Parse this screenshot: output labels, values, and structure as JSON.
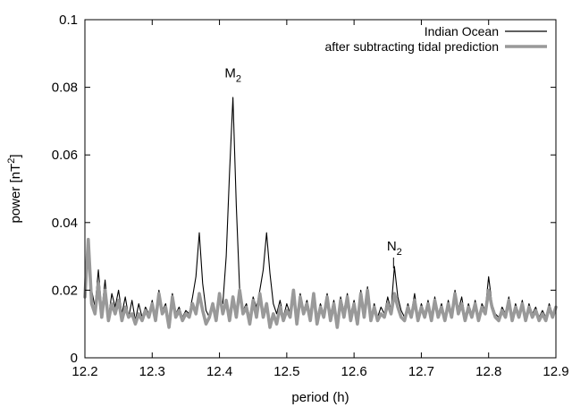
{
  "chart_data": {
    "type": "line",
    "xlabel": "period (h)",
    "ylabel_main": "power [nT",
    "ylabel_sup": "2",
    "ylabel_close": "]",
    "xlim": [
      12.2,
      12.9
    ],
    "ylim": [
      0,
      0.1
    ],
    "x_ticks": [
      12.2,
      12.3,
      12.4,
      12.5,
      12.6,
      12.7,
      12.8,
      12.9
    ],
    "x_tick_labels": [
      "12.2",
      "12.3",
      "12.4",
      "12.5",
      "12.6",
      "12.7",
      "12.8",
      "12.9"
    ],
    "y_ticks": [
      0,
      0.02,
      0.04,
      0.06,
      0.08,
      0.1
    ],
    "y_tick_labels": [
      "0",
      "0.02",
      "0.04",
      "0.06",
      "0.08",
      "0.1"
    ],
    "grid": false,
    "legend_position": "top-right",
    "annotations": [
      {
        "label": "M",
        "sub": "2",
        "x": 12.42,
        "y": 0.083
      },
      {
        "label": "N",
        "sub": "2",
        "x": 12.66,
        "y": 0.036
      }
    ],
    "series": [
      {
        "name": "Indian Ocean",
        "color": "#000000",
        "x": [
          12.2,
          12.205,
          12.21,
          12.215,
          12.22,
          12.225,
          12.23,
          12.235,
          12.24,
          12.245,
          12.25,
          12.255,
          12.26,
          12.265,
          12.27,
          12.275,
          12.28,
          12.285,
          12.29,
          12.295,
          12.3,
          12.305,
          12.31,
          12.315,
          12.32,
          12.325,
          12.33,
          12.335,
          12.34,
          12.345,
          12.35,
          12.355,
          12.36,
          12.365,
          12.37,
          12.375,
          12.38,
          12.385,
          12.39,
          12.395,
          12.4,
          12.405,
          12.41,
          12.415,
          12.42,
          12.425,
          12.43,
          12.435,
          12.44,
          12.445,
          12.45,
          12.455,
          12.46,
          12.465,
          12.47,
          12.475,
          12.48,
          12.485,
          12.49,
          12.495,
          12.5,
          12.505,
          12.51,
          12.515,
          12.52,
          12.525,
          12.53,
          12.535,
          12.54,
          12.545,
          12.55,
          12.555,
          12.56,
          12.565,
          12.57,
          12.575,
          12.58,
          12.585,
          12.59,
          12.595,
          12.6,
          12.605,
          12.61,
          12.615,
          12.62,
          12.625,
          12.63,
          12.635,
          12.64,
          12.645,
          12.65,
          12.655,
          12.66,
          12.665,
          12.67,
          12.675,
          12.68,
          12.685,
          12.69,
          12.695,
          12.7,
          12.705,
          12.71,
          12.715,
          12.72,
          12.725,
          12.73,
          12.735,
          12.74,
          12.745,
          12.75,
          12.755,
          12.76,
          12.765,
          12.77,
          12.775,
          12.78,
          12.785,
          12.79,
          12.795,
          12.8,
          12.805,
          12.81,
          12.815,
          12.82,
          12.825,
          12.83,
          12.835,
          12.84,
          12.845,
          12.85,
          12.855,
          12.86,
          12.865,
          12.87,
          12.875,
          12.88,
          12.885,
          12.89,
          12.895,
          12.9
        ],
        "y": [
          0.022,
          0.034,
          0.02,
          0.015,
          0.026,
          0.014,
          0.023,
          0.012,
          0.019,
          0.015,
          0.02,
          0.013,
          0.018,
          0.012,
          0.017,
          0.011,
          0.016,
          0.012,
          0.015,
          0.013,
          0.017,
          0.012,
          0.02,
          0.014,
          0.016,
          0.011,
          0.019,
          0.013,
          0.015,
          0.012,
          0.014,
          0.013,
          0.018,
          0.024,
          0.037,
          0.022,
          0.014,
          0.012,
          0.016,
          0.013,
          0.018,
          0.016,
          0.03,
          0.055,
          0.077,
          0.045,
          0.02,
          0.014,
          0.016,
          0.012,
          0.018,
          0.015,
          0.02,
          0.026,
          0.037,
          0.025,
          0.016,
          0.013,
          0.017,
          0.012,
          0.016,
          0.013,
          0.018,
          0.012,
          0.019,
          0.014,
          0.017,
          0.013,
          0.018,
          0.012,
          0.016,
          0.013,
          0.019,
          0.013,
          0.017,
          0.011,
          0.018,
          0.014,
          0.019,
          0.013,
          0.017,
          0.012,
          0.02,
          0.014,
          0.021,
          0.012,
          0.016,
          0.012,
          0.015,
          0.013,
          0.018,
          0.014,
          0.027,
          0.018,
          0.014,
          0.012,
          0.016,
          0.013,
          0.019,
          0.012,
          0.016,
          0.013,
          0.017,
          0.012,
          0.018,
          0.013,
          0.016,
          0.012,
          0.017,
          0.013,
          0.02,
          0.014,
          0.018,
          0.012,
          0.016,
          0.013,
          0.017,
          0.012,
          0.016,
          0.014,
          0.024,
          0.016,
          0.013,
          0.012,
          0.015,
          0.013,
          0.018,
          0.012,
          0.016,
          0.013,
          0.017,
          0.012,
          0.016,
          0.013,
          0.015,
          0.012,
          0.014,
          0.012,
          0.016,
          0.013,
          0.015
        ]
      },
      {
        "name": "after subtracting tidal prediction",
        "color": "#999999",
        "x": [
          12.2,
          12.205,
          12.21,
          12.215,
          12.22,
          12.225,
          12.23,
          12.235,
          12.24,
          12.245,
          12.25,
          12.255,
          12.26,
          12.265,
          12.27,
          12.275,
          12.28,
          12.285,
          12.29,
          12.295,
          12.3,
          12.305,
          12.31,
          12.315,
          12.32,
          12.325,
          12.33,
          12.335,
          12.34,
          12.345,
          12.35,
          12.355,
          12.36,
          12.365,
          12.37,
          12.375,
          12.38,
          12.385,
          12.39,
          12.395,
          12.4,
          12.405,
          12.41,
          12.415,
          12.42,
          12.425,
          12.43,
          12.435,
          12.44,
          12.445,
          12.45,
          12.455,
          12.46,
          12.465,
          12.47,
          12.475,
          12.48,
          12.485,
          12.49,
          12.495,
          12.5,
          12.505,
          12.51,
          12.515,
          12.52,
          12.525,
          12.53,
          12.535,
          12.54,
          12.545,
          12.55,
          12.555,
          12.56,
          12.565,
          12.57,
          12.575,
          12.58,
          12.585,
          12.59,
          12.595,
          12.6,
          12.605,
          12.61,
          12.615,
          12.62,
          12.625,
          12.63,
          12.635,
          12.64,
          12.645,
          12.65,
          12.655,
          12.66,
          12.665,
          12.67,
          12.675,
          12.68,
          12.685,
          12.69,
          12.695,
          12.7,
          12.705,
          12.71,
          12.715,
          12.72,
          12.725,
          12.73,
          12.735,
          12.74,
          12.745,
          12.75,
          12.755,
          12.76,
          12.765,
          12.77,
          12.775,
          12.78,
          12.785,
          12.79,
          12.795,
          12.8,
          12.805,
          12.81,
          12.815,
          12.82,
          12.825,
          12.83,
          12.835,
          12.84,
          12.845,
          12.85,
          12.855,
          12.86,
          12.865,
          12.87,
          12.875,
          12.88,
          12.885,
          12.89,
          12.895,
          12.9
        ],
        "y": [
          0.018,
          0.035,
          0.016,
          0.013,
          0.022,
          0.012,
          0.02,
          0.011,
          0.016,
          0.013,
          0.017,
          0.011,
          0.015,
          0.012,
          0.013,
          0.01,
          0.013,
          0.011,
          0.014,
          0.012,
          0.016,
          0.011,
          0.019,
          0.013,
          0.015,
          0.009,
          0.018,
          0.012,
          0.014,
          0.011,
          0.013,
          0.012,
          0.016,
          0.013,
          0.019,
          0.014,
          0.01,
          0.012,
          0.016,
          0.011,
          0.019,
          0.013,
          0.017,
          0.011,
          0.018,
          0.012,
          0.02,
          0.013,
          0.015,
          0.01,
          0.017,
          0.012,
          0.019,
          0.012,
          0.016,
          0.009,
          0.013,
          0.01,
          0.015,
          0.011,
          0.014,
          0.012,
          0.02,
          0.01,
          0.018,
          0.013,
          0.016,
          0.011,
          0.019,
          0.01,
          0.015,
          0.012,
          0.018,
          0.011,
          0.016,
          0.009,
          0.017,
          0.012,
          0.018,
          0.011,
          0.016,
          0.01,
          0.019,
          0.012,
          0.02,
          0.011,
          0.015,
          0.011,
          0.013,
          0.012,
          0.016,
          0.013,
          0.019,
          0.015,
          0.012,
          0.011,
          0.015,
          0.012,
          0.017,
          0.011,
          0.015,
          0.012,
          0.016,
          0.011,
          0.017,
          0.012,
          0.015,
          0.011,
          0.016,
          0.012,
          0.019,
          0.013,
          0.016,
          0.011,
          0.015,
          0.012,
          0.016,
          0.011,
          0.015,
          0.013,
          0.02,
          0.015,
          0.012,
          0.011,
          0.014,
          0.012,
          0.017,
          0.011,
          0.015,
          0.012,
          0.016,
          0.011,
          0.015,
          0.012,
          0.014,
          0.011,
          0.013,
          0.011,
          0.015,
          0.012,
          0.015
        ]
      }
    ]
  }
}
